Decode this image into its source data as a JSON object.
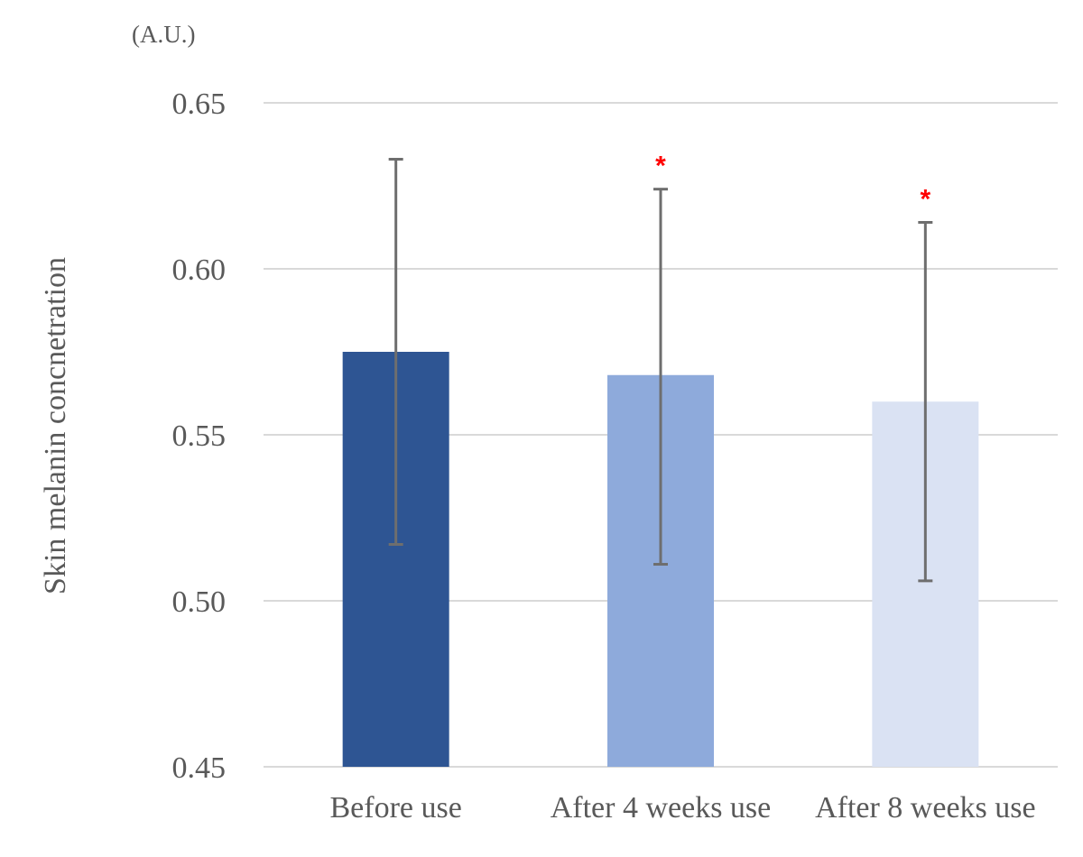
{
  "chart_data": {
    "type": "bar",
    "unit_label": "(A.U.)",
    "ylabel": "Skin melanin concnetration",
    "xlabel": "",
    "ylim": [
      0.45,
      0.65
    ],
    "yticks": [
      "0.65",
      "0.60",
      "0.55",
      "0.50",
      "0.45"
    ],
    "ytick_values": [
      0.65,
      0.6,
      0.55,
      0.5,
      0.45
    ],
    "grid": true,
    "categories": [
      "Before use",
      "After 4 weeks use",
      "After 8 weeks use"
    ],
    "values": [
      0.575,
      0.568,
      0.56
    ],
    "error_upper": [
      0.633,
      0.624,
      0.614
    ],
    "error_lower": [
      0.517,
      0.511,
      0.506
    ],
    "significance": [
      "",
      "*",
      "*"
    ],
    "colors": [
      "#2e5593",
      "#8eaadb",
      "#dae2f3"
    ],
    "significance_color": "#ff0000"
  }
}
